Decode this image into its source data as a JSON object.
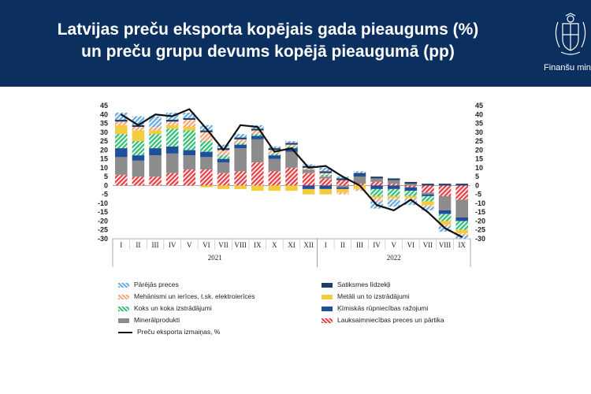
{
  "header": {
    "title_line1": "Latvijas preču eksporta kopējais gada pieaugums (%)",
    "title_line2": "un preču grupu devums kopējā pieaugumā (pp)",
    "ministry_label": "Finanšu ministrija",
    "bg_color": "#0b2f5f"
  },
  "chart_data": {
    "type": "bar",
    "stacked": true,
    "ylim": [
      -30,
      45
    ],
    "yticks": [
      -30,
      -25,
      -20,
      -15,
      -10,
      -5,
      0,
      5,
      10,
      15,
      20,
      25,
      30,
      35,
      40,
      45
    ],
    "ytick_labels": [
      "-30",
      "-25",
      "-20",
      "-15",
      "-10",
      "-5",
      "0",
      "5",
      "10",
      "15",
      "20",
      "25",
      "30",
      "35",
      "40",
      "45"
    ],
    "categories": [
      "I",
      "II",
      "III",
      "IV",
      "V",
      "VI",
      "VII",
      "VIII",
      "IX",
      "X",
      "XI",
      "XII",
      "I",
      "II",
      "III",
      "IV",
      "V",
      "VI",
      "VII",
      "VIII",
      "IX"
    ],
    "year_groups": [
      {
        "label": "2021",
        "start": 0,
        "end": 11
      },
      {
        "label": "2022",
        "start": 12,
        "end": 20
      }
    ],
    "grid": false,
    "legend_position": "bottom",
    "series": [
      {
        "name": "Lauksaimniecības preces un pārtika",
        "color": "#e8454a",
        "pattern": "hatch",
        "values": [
          6,
          5,
          5,
          7,
          9,
          9,
          7,
          8,
          13,
          8,
          10,
          7,
          4,
          3,
          1,
          2,
          1,
          -1,
          -4,
          -6,
          -8
        ]
      },
      {
        "name": "Minerālprodukti",
        "color": "#8c8c8c",
        "pattern": "solid",
        "values": [
          10,
          9,
          12,
          11,
          8,
          7,
          6,
          13,
          13,
          7,
          9,
          2,
          1,
          -1,
          4,
          2,
          2,
          1,
          -1,
          -8,
          -10
        ]
      },
      {
        "name": "Ķīmiskās rūpniecības ražojumi",
        "color": "#1f4e9a",
        "pattern": "solid",
        "values": [
          5,
          3,
          4,
          4,
          3,
          3,
          2,
          2,
          2,
          2,
          2,
          -2,
          -2,
          -1,
          1,
          -2,
          -2,
          -2,
          -1,
          -2,
          -2
        ]
      },
      {
        "name": "Koks un koka izstrādājumi",
        "color": "#3cc07a",
        "pattern": "hatch",
        "values": [
          8,
          8,
          8,
          10,
          11,
          6,
          2,
          1,
          1,
          1,
          1,
          0,
          1,
          0,
          0,
          -4,
          -4,
          -3,
          -3,
          -4,
          -5
        ]
      },
      {
        "name": "Metāli un to izstrādājumi",
        "color": "#f5cb40",
        "pattern": "solid",
        "values": [
          5,
          6,
          2,
          2,
          2,
          -1,
          -2,
          -2,
          -3,
          -3,
          -3,
          -3,
          -3,
          -2,
          -2,
          -1,
          -1,
          -1,
          -2,
          -2,
          -2
        ]
      },
      {
        "name": "Mehānismi un ierīces, t.sk. elektroierīces",
        "color": "#f4a77f",
        "pattern": "hatch",
        "values": [
          2,
          2,
          2,
          2,
          4,
          5,
          3,
          2,
          2,
          2,
          1,
          1,
          1,
          -1,
          -1,
          -2,
          -1,
          -1,
          -1,
          -1,
          -1
        ]
      },
      {
        "name": "Satiksmes līdzekļi",
        "color": "#1f3d66",
        "pattern": "solid",
        "values": [
          1,
          1,
          0,
          1,
          1,
          1,
          1,
          1,
          1,
          1,
          1,
          1,
          1,
          1,
          1,
          1,
          1,
          1,
          1,
          1,
          1
        ]
      },
      {
        "name": "Pārējās preces",
        "color": "#6aaee0",
        "pattern": "hatch",
        "values": [
          4,
          5,
          6,
          4,
          3,
          3,
          2,
          2,
          2,
          1,
          1,
          1,
          2,
          1,
          1,
          -4,
          -4,
          -3,
          -2,
          -3,
          -2
        ]
      }
    ],
    "line_series": {
      "name": "Preču eksporta izmaiņas, %",
      "color": "#111111",
      "values": [
        40,
        34,
        40,
        39,
        43,
        32,
        20,
        34,
        33,
        19,
        21,
        10,
        11,
        5,
        0,
        -11,
        -14,
        -8,
        -15,
        -24,
        -29
      ]
    },
    "legend_entries": [
      {
        "label": "Pārējās preces",
        "series": "Pārējās preces"
      },
      {
        "label": "Satiksmes līdzekļi",
        "series": "Satiksmes līdzekļi"
      },
      {
        "label": "Mehānismi un ierīces, t.sk. elektroierīces",
        "series": "Mehānismi un ierīces, t.sk. elektroierīces"
      },
      {
        "label": "Metāli un to izstrādājumi",
        "series": "Metāli un to izstrādājumi"
      },
      {
        "label": "Koks un koka izstrādājumi",
        "series": "Koks un koka izstrādājumi"
      },
      {
        "label": "Ķīmiskās rūpniecības ražojumi",
        "series": "Ķīmiskās rūpniecības ražojumi"
      },
      {
        "label": "Minerālprodukti",
        "series": "Minerālprodukti"
      },
      {
        "label": "Lauksaimniecības preces un pārtika",
        "series": "Lauksaimniecības preces un pārtika"
      },
      {
        "label": "Preču eksporta izmaiņas, %",
        "series": "line"
      }
    ]
  }
}
